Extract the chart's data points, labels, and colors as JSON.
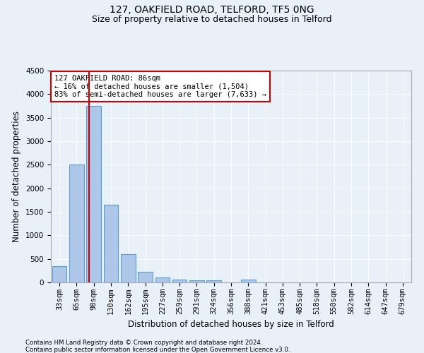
{
  "title": "127, OAKFIELD ROAD, TELFORD, TF5 0NG",
  "subtitle": "Size of property relative to detached houses in Telford",
  "xlabel": "Distribution of detached houses by size in Telford",
  "ylabel": "Number of detached properties",
  "footnote1": "Contains HM Land Registry data © Crown copyright and database right 2024.",
  "footnote2": "Contains public sector information licensed under the Open Government Licence v3.0.",
  "categories": [
    "33sqm",
    "65sqm",
    "98sqm",
    "130sqm",
    "162sqm",
    "195sqm",
    "227sqm",
    "259sqm",
    "291sqm",
    "324sqm",
    "356sqm",
    "388sqm",
    "421sqm",
    "453sqm",
    "485sqm",
    "518sqm",
    "550sqm",
    "582sqm",
    "614sqm",
    "647sqm",
    "679sqm"
  ],
  "values": [
    350,
    2500,
    3750,
    1650,
    600,
    225,
    100,
    60,
    40,
    40,
    0,
    60,
    0,
    0,
    0,
    0,
    0,
    0,
    0,
    0,
    0
  ],
  "bar_color": "#aec6e8",
  "bar_edge_color": "#5a9fd4",
  "red_line_x": 1.72,
  "annotation_text": "127 OAKFIELD ROAD: 86sqm\n← 16% of detached houses are smaller (1,504)\n83% of semi-detached houses are larger (7,633) →",
  "annotation_box_color": "#ffffff",
  "annotation_box_edge_color": "#cc0000",
  "ylim": [
    0,
    4500
  ],
  "yticks": [
    0,
    500,
    1000,
    1500,
    2000,
    2500,
    3000,
    3500,
    4000,
    4500
  ],
  "background_color": "#e8f0f8",
  "grid_color": "#ffffff",
  "title_fontsize": 10,
  "subtitle_fontsize": 9,
  "axis_label_fontsize": 8.5,
  "tick_fontsize": 7.5
}
